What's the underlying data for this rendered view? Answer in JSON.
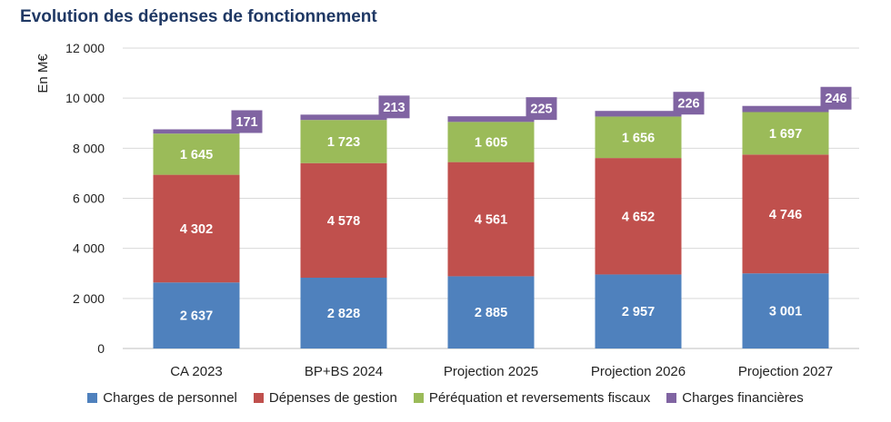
{
  "chart_data": {
    "type": "bar",
    "stacked": true,
    "title": "Evolution des dépenses de fonctionnement",
    "ylabel": "En M€",
    "xlabel": "",
    "ylim": [
      0,
      12000
    ],
    "yticks": [
      0,
      2000,
      4000,
      6000,
      8000,
      10000,
      12000
    ],
    "ytick_labels": [
      "0",
      "2 000",
      "4 000",
      "6 000",
      "8 000",
      "10 000",
      "12 000"
    ],
    "grid": true,
    "legend_position": "bottom",
    "categories": [
      "CA 2023",
      "BP+BS 2024",
      "Projection 2025",
      "Projection 2026",
      "Projection 2027"
    ],
    "series": [
      {
        "name": "Charges de personnel",
        "color": "#4f81bd",
        "values": [
          2637,
          2828,
          2885,
          2957,
          3001
        ],
        "labels": [
          "2 637",
          "2 828",
          "2 885",
          "2 957",
          "3 001"
        ]
      },
      {
        "name": "Dépenses de gestion",
        "color": "#c0504d",
        "values": [
          4302,
          4578,
          4561,
          4652,
          4746
        ],
        "labels": [
          "4 302",
          "4 578",
          "4 561",
          "4 652",
          "4 746"
        ]
      },
      {
        "name": "Péréquation et reversements fiscaux",
        "color": "#9bbb59",
        "values": [
          1645,
          1723,
          1605,
          1656,
          1697
        ],
        "labels": [
          "1 645",
          "1 723",
          "1 605",
          "1 656",
          "1 697"
        ]
      },
      {
        "name": "Charges financières",
        "color": "#8064a2",
        "values": [
          171,
          213,
          225,
          226,
          246
        ],
        "labels": [
          "171",
          "213",
          "225",
          "226",
          "246"
        ]
      }
    ]
  }
}
